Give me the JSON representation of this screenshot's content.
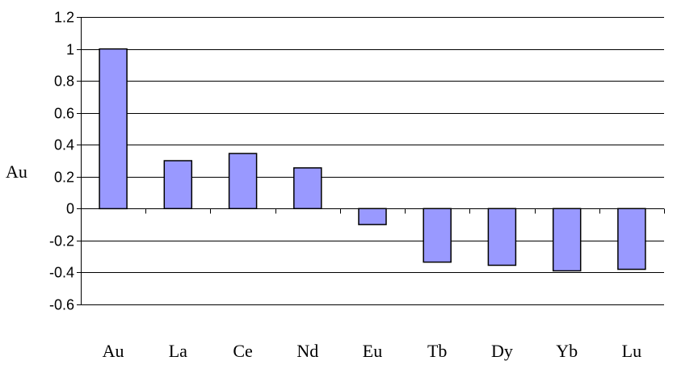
{
  "chart_data": {
    "type": "bar",
    "categories": [
      "Au",
      "La",
      "Ce",
      "Nd",
      "Eu",
      "Tb",
      "Dy",
      "Yb",
      "Lu"
    ],
    "values": [
      1.0,
      0.3,
      0.345,
      0.255,
      -0.1,
      -0.335,
      -0.355,
      -0.39,
      -0.38
    ],
    "title": "",
    "xlabel": "",
    "ylabel": "Au",
    "ylim": [
      -0.6,
      1.2
    ],
    "yticks": [
      "-0.6",
      "-0.4",
      "-0.2",
      "0",
      "0.2",
      "0.4",
      "0.6",
      "0.8",
      "1",
      "1.2"
    ],
    "grid": true,
    "legend": "none",
    "bar_color": "#9999ff"
  }
}
